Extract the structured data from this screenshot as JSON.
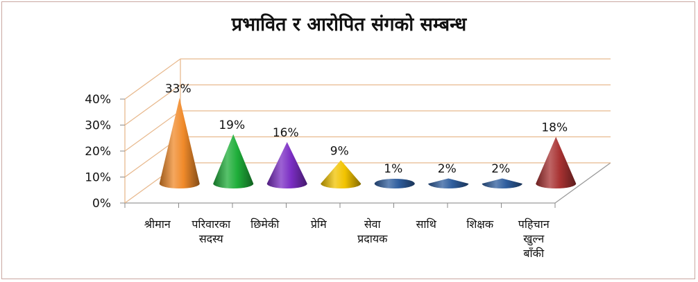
{
  "chart_data": {
    "type": "bar",
    "style": "3d-cone",
    "title": "प्रभावित र आरोपित संगको सम्बन्ध",
    "xlabel": "",
    "ylabel": "",
    "ylim": [
      0,
      40
    ],
    "yticks": [
      "0%",
      "10%",
      "20%",
      "30%",
      "40%"
    ],
    "categories": [
      [
        "श्रीमान"
      ],
      [
        "परिवारका",
        "सदस्य"
      ],
      [
        "छिमेकी"
      ],
      [
        "प्रेमि"
      ],
      [
        "सेवा",
        "प्रदायक"
      ],
      [
        "साथि"
      ],
      [
        "शिक्षक"
      ],
      [
        "पहिचान",
        "खुल्न",
        "बाँकी"
      ]
    ],
    "values": [
      33,
      19,
      16,
      9,
      1,
      2,
      2,
      18
    ],
    "value_labels": [
      "33%",
      "19%",
      "16%",
      "9%",
      "1%",
      "2%",
      "2%",
      "18%"
    ],
    "colors": [
      "#f08a2a",
      "#1fae3a",
      "#7b2ec4",
      "#f2c300",
      "#2f5e9e",
      "#2f5e9e",
      "#2f5e9e",
      "#a83232"
    ],
    "grid": true,
    "legend": "none"
  }
}
